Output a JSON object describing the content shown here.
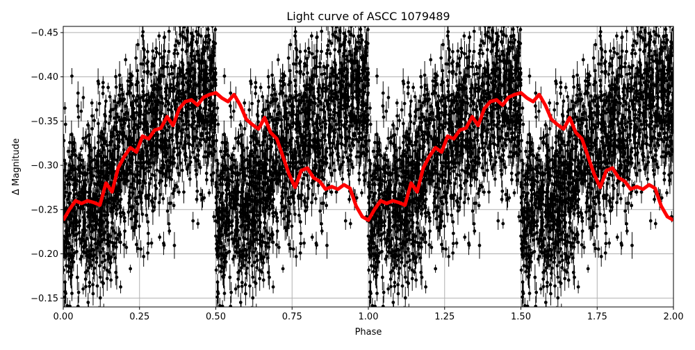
{
  "chart_data": {
    "type": "scatter",
    "title": "Light curve of ASCC 1079489",
    "xlabel": "Phase",
    "ylabel": "Δ Magnitude",
    "xlim": [
      0,
      2
    ],
    "ylim": [
      -0.457,
      -0.14
    ],
    "y_inverted": true,
    "grid": true,
    "x_ticks": [
      "0.00",
      "0.25",
      "0.50",
      "0.75",
      "1.00",
      "1.25",
      "1.50",
      "1.75",
      "2.00"
    ],
    "x_tick_values": [
      0,
      0.25,
      0.5,
      0.75,
      1,
      1.25,
      1.5,
      1.75,
      2
    ],
    "y_ticks": [
      "−0.45",
      "−0.40",
      "−0.35",
      "−0.30",
      "−0.25",
      "−0.20",
      "−0.15"
    ],
    "y_tick_values": [
      -0.45,
      -0.4,
      -0.35,
      -0.3,
      -0.25,
      -0.2,
      -0.15
    ],
    "scatter_color": "#000000",
    "binned_curve": {
      "color": "#ff0000",
      "phase": [
        0,
        0.02,
        0.04,
        0.06,
        0.08,
        0.1,
        0.12,
        0.14,
        0.16,
        0.18,
        0.2,
        0.22,
        0.24,
        0.26,
        0.28,
        0.3,
        0.32,
        0.34,
        0.36,
        0.38,
        0.4,
        0.42,
        0.44,
        0.46,
        0.48,
        0.5,
        0.52,
        0.54,
        0.56,
        0.58,
        0.6,
        0.62,
        0.64,
        0.66,
        0.68,
        0.7,
        0.72,
        0.74,
        0.76,
        0.78,
        0.8,
        0.82,
        0.84,
        0.86,
        0.88,
        0.9,
        0.92,
        0.94,
        0.96,
        0.98,
        1.0
      ],
      "magnitude": [
        -0.238,
        -0.25,
        -0.26,
        -0.257,
        -0.26,
        -0.258,
        -0.255,
        -0.28,
        -0.27,
        -0.297,
        -0.31,
        -0.32,
        -0.315,
        -0.333,
        -0.33,
        -0.34,
        -0.342,
        -0.355,
        -0.345,
        -0.364,
        -0.372,
        -0.374,
        -0.368,
        -0.377,
        -0.38,
        -0.382,
        -0.376,
        -0.372,
        -0.38,
        -0.368,
        -0.352,
        -0.346,
        -0.341,
        -0.354,
        -0.337,
        -0.33,
        -0.31,
        -0.29,
        -0.275,
        -0.294,
        -0.297,
        -0.286,
        -0.282,
        -0.273,
        -0.276,
        -0.273,
        -0.278,
        -0.274,
        -0.254,
        -0.242,
        -0.238
      ],
      "repeats_each_phase_cycle": true
    }
  }
}
